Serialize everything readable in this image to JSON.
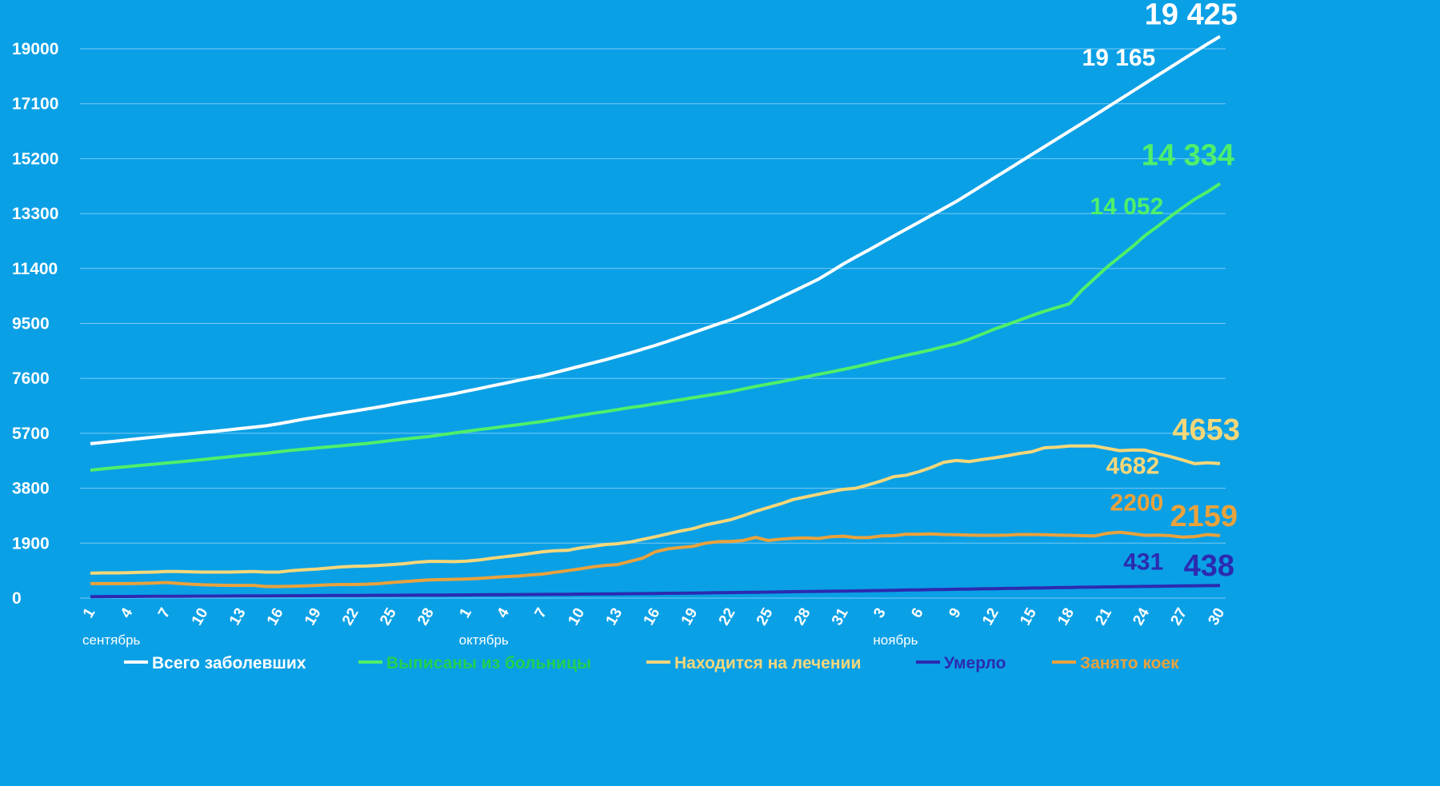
{
  "chart_data": {
    "type": "line",
    "categories": [
      "1",
      null,
      null,
      "4",
      null,
      null,
      "7",
      null,
      null,
      "10",
      null,
      null,
      "13",
      null,
      null,
      "16",
      null,
      null,
      "19",
      null,
      null,
      "22",
      null,
      null,
      "25",
      null,
      null,
      "28",
      null,
      null,
      "1",
      null,
      null,
      "4",
      null,
      null,
      "7",
      null,
      null,
      "10",
      null,
      null,
      "13",
      null,
      null,
      "16",
      null,
      null,
      "19",
      null,
      null,
      "22",
      null,
      null,
      "25",
      null,
      null,
      "28",
      null,
      null,
      "31",
      null,
      null,
      "3",
      null,
      null,
      "6",
      null,
      null,
      "9",
      null,
      null,
      "12",
      null,
      null,
      "15",
      null,
      null,
      "18",
      null,
      null,
      "21",
      null,
      null,
      "24",
      null,
      null,
      "27",
      null,
      null,
      "30"
    ],
    "month_labels": [
      "сентябрь",
      "октябрь",
      "ноябрь"
    ],
    "ylim": [
      0,
      19700
    ],
    "yticks": [
      0,
      1900,
      3800,
      5700,
      7600,
      9500,
      11400,
      13300,
      15200,
      17100,
      19000
    ],
    "grid": true,
    "series": [
      {
        "name": "Всего заболевших",
        "color": "#ffffff",
        "legend_color": "#ffffff",
        "values": [
          5340,
          5385,
          5430,
          5475,
          5520,
          5565,
          5610,
          5650,
          5690,
          5730,
          5775,
          5820,
          5865,
          5910,
          5960,
          6030,
          6110,
          6190,
          6260,
          6330,
          6400,
          6470,
          6540,
          6610,
          6690,
          6770,
          6840,
          6915,
          6990,
          7070,
          7160,
          7250,
          7340,
          7430,
          7520,
          7610,
          7690,
          7800,
          7910,
          8020,
          8130,
          8240,
          8360,
          8480,
          8610,
          8740,
          8880,
          9030,
          9180,
          9330,
          9480,
          9625,
          9800,
          9990,
          10190,
          10400,
          10610,
          10820,
          11030,
          11290,
          11560,
          11800,
          12040,
          12280,
          12520,
          12760,
          13000,
          13240,
          13480,
          13720,
          13990,
          14260,
          14530,
          14800,
          15070,
          15340,
          15610,
          15880,
          16150,
          16420,
          16695,
          16970,
          17245,
          17520,
          17795,
          18070,
          18345,
          18620,
          18895,
          19165,
          19425
        ],
        "value_labels": [
          null,
          null,
          null,
          null,
          null,
          null,
          null,
          null,
          null,
          null,
          null,
          null,
          null,
          null,
          null,
          null,
          null,
          null,
          null,
          null,
          null,
          null,
          null,
          null,
          null,
          null,
          null,
          null,
          null,
          null,
          null,
          null,
          null,
          null,
          null,
          null,
          null,
          null,
          null,
          null,
          null,
          null,
          null,
          null,
          null,
          null,
          null,
          null,
          null,
          null,
          null,
          null,
          null,
          null,
          null,
          null,
          null,
          null,
          null,
          null,
          null,
          null,
          null,
          null,
          null,
          null,
          null,
          null,
          null,
          null,
          null,
          null,
          null,
          null,
          null,
          null,
          null,
          null,
          null,
          null,
          null,
          null,
          null,
          null,
          null,
          null,
          null,
          null,
          null,
          "19 165",
          "19 425"
        ]
      },
      {
        "name": "Выписаны из больницы",
        "color": "#4ff06a",
        "legend_color": "#22d04e",
        "values": [
          4425,
          4470,
          4510,
          4550,
          4590,
          4630,
          4670,
          4710,
          4750,
          4795,
          4840,
          4885,
          4930,
          4970,
          5010,
          5060,
          5110,
          5150,
          5190,
          5230,
          5270,
          5310,
          5350,
          5400,
          5450,
          5500,
          5545,
          5590,
          5650,
          5710,
          5770,
          5830,
          5880,
          5940,
          5990,
          6050,
          6110,
          6180,
          6250,
          6320,
          6390,
          6450,
          6520,
          6590,
          6650,
          6720,
          6790,
          6860,
          6930,
          7000,
          7070,
          7140,
          7230,
          7320,
          7400,
          7480,
          7570,
          7650,
          7740,
          7820,
          7910,
          8000,
          8100,
          8200,
          8300,
          8400,
          8490,
          8590,
          8700,
          8800,
          8950,
          9120,
          9300,
          9450,
          9610,
          9770,
          9920,
          10050,
          10180,
          10650,
          11050,
          11450,
          11800,
          12150,
          12530,
          12850,
          13180,
          13500,
          13800,
          14052,
          14334
        ],
        "value_labels": [
          null,
          null,
          null,
          null,
          null,
          null,
          null,
          null,
          null,
          null,
          null,
          null,
          null,
          null,
          null,
          null,
          null,
          null,
          null,
          null,
          null,
          null,
          null,
          null,
          null,
          null,
          null,
          null,
          null,
          null,
          null,
          null,
          null,
          null,
          null,
          null,
          null,
          null,
          null,
          null,
          null,
          null,
          null,
          null,
          null,
          null,
          null,
          null,
          null,
          null,
          null,
          null,
          null,
          null,
          null,
          null,
          null,
          null,
          null,
          null,
          null,
          null,
          null,
          null,
          null,
          null,
          null,
          null,
          null,
          null,
          null,
          null,
          null,
          null,
          null,
          null,
          null,
          null,
          null,
          null,
          null,
          null,
          null,
          null,
          null,
          null,
          null,
          null,
          null,
          "14 052",
          "14 334"
        ]
      },
      {
        "name": "Находится на лечении",
        "color": "#f5d77a",
        "legend_color": "#f5d77a",
        "values": [
          860,
          870,
          870,
          880,
          890,
          900,
          920,
          920,
          910,
          900,
          900,
          900,
          910,
          920,
          900,
          900,
          950,
          980,
          1000,
          1040,
          1080,
          1100,
          1110,
          1130,
          1160,
          1190,
          1240,
          1270,
          1270,
          1260,
          1280,
          1320,
          1380,
          1430,
          1480,
          1540,
          1600,
          1640,
          1650,
          1730,
          1790,
          1850,
          1880,
          1940,
          2030,
          2120,
          2220,
          2320,
          2400,
          2530,
          2620,
          2710,
          2850,
          3000,
          3130,
          3260,
          3410,
          3500,
          3590,
          3680,
          3760,
          3800,
          3920,
          4050,
          4200,
          4250,
          4370,
          4520,
          4700,
          4760,
          4720,
          4790,
          4850,
          4920,
          5000,
          5060,
          5200,
          5220,
          5260,
          5260,
          5260,
          5180,
          5100,
          5120,
          5120,
          5000,
          4900,
          4780,
          4650,
          4682,
          4653
        ],
        "value_labels": [
          null,
          null,
          null,
          null,
          null,
          null,
          null,
          null,
          null,
          null,
          null,
          null,
          null,
          null,
          null,
          null,
          null,
          null,
          null,
          null,
          null,
          null,
          null,
          null,
          null,
          null,
          null,
          null,
          null,
          null,
          null,
          null,
          null,
          null,
          null,
          null,
          null,
          null,
          null,
          null,
          null,
          null,
          null,
          null,
          null,
          null,
          null,
          null,
          null,
          null,
          null,
          null,
          null,
          null,
          null,
          null,
          null,
          null,
          null,
          null,
          null,
          null,
          null,
          null,
          null,
          null,
          null,
          null,
          null,
          null,
          null,
          null,
          null,
          null,
          null,
          null,
          null,
          null,
          null,
          null,
          null,
          null,
          null,
          null,
          null,
          null,
          null,
          null,
          null,
          "4682",
          "4653"
        ]
      },
      {
        "name": "Умерло",
        "color": "#2b2bb0",
        "legend_color": "#2b2bb0",
        "values": [
          50,
          52,
          54,
          56,
          58,
          60,
          62,
          64,
          66,
          68,
          70,
          72,
          74,
          76,
          78,
          80,
          82,
          84,
          86,
          88,
          90,
          92,
          94,
          96,
          98,
          100,
          102,
          104,
          106,
          108,
          110,
          113,
          116,
          119,
          122,
          125,
          128,
          131,
          134,
          137,
          140,
          144,
          148,
          152,
          156,
          160,
          165,
          170,
          175,
          180,
          185,
          190,
          196,
          202,
          208,
          214,
          220,
          226,
          232,
          238,
          244,
          250,
          257,
          264,
          271,
          278,
          285,
          292,
          299,
          306,
          313,
          320,
          327,
          334,
          341,
          348,
          355,
          362,
          369,
          375,
          381,
          387,
          393,
          399,
          405,
          410,
          415,
          420,
          426,
          431,
          438
        ],
        "value_labels": [
          null,
          null,
          null,
          null,
          null,
          null,
          null,
          null,
          null,
          null,
          null,
          null,
          null,
          null,
          null,
          null,
          null,
          null,
          null,
          null,
          null,
          null,
          null,
          null,
          null,
          null,
          null,
          null,
          null,
          null,
          null,
          null,
          null,
          null,
          null,
          null,
          null,
          null,
          null,
          null,
          null,
          null,
          null,
          null,
          null,
          null,
          null,
          null,
          null,
          null,
          null,
          null,
          null,
          null,
          null,
          null,
          null,
          null,
          null,
          null,
          null,
          null,
          null,
          null,
          null,
          null,
          null,
          null,
          null,
          null,
          null,
          null,
          null,
          null,
          null,
          null,
          null,
          null,
          null,
          null,
          null,
          null,
          null,
          null,
          null,
          null,
          null,
          null,
          null,
          "431",
          "438"
        ]
      },
      {
        "name": "Занято коек",
        "color": "#e9a23c",
        "legend_color": "#e9a23c",
        "values": [
          500,
          500,
          500,
          500,
          510,
          520,
          540,
          510,
          480,
          460,
          450,
          440,
          440,
          440,
          400,
          400,
          410,
          420,
          440,
          460,
          470,
          470,
          480,
          500,
          540,
          570,
          600,
          630,
          640,
          650,
          660,
          680,
          710,
          740,
          760,
          800,
          830,
          890,
          950,
          1010,
          1080,
          1130,
          1160,
          1270,
          1380,
          1600,
          1700,
          1750,
          1790,
          1900,
          1950,
          1960,
          1990,
          2100,
          1990,
          2040,
          2070,
          2080,
          2060,
          2120,
          2140,
          2090,
          2090,
          2150,
          2160,
          2210,
          2210,
          2220,
          2200,
          2190,
          2180,
          2170,
          2170,
          2180,
          2200,
          2200,
          2190,
          2180,
          2170,
          2160,
          2150,
          2240,
          2280,
          2230,
          2170,
          2180,
          2160,
          2110,
          2130,
          2200,
          2159
        ],
        "value_labels": [
          null,
          null,
          null,
          null,
          null,
          null,
          null,
          null,
          null,
          null,
          null,
          null,
          null,
          null,
          null,
          null,
          null,
          null,
          null,
          null,
          null,
          null,
          null,
          null,
          null,
          null,
          null,
          null,
          null,
          null,
          null,
          null,
          null,
          null,
          null,
          null,
          null,
          null,
          null,
          null,
          null,
          null,
          null,
          null,
          null,
          null,
          null,
          null,
          null,
          null,
          null,
          null,
          null,
          null,
          null,
          null,
          null,
          null,
          null,
          null,
          null,
          null,
          null,
          null,
          null,
          null,
          null,
          null,
          null,
          null,
          null,
          null,
          null,
          null,
          null,
          null,
          null,
          null,
          null,
          null,
          null,
          null,
          null,
          null,
          null,
          null,
          null,
          null,
          null,
          "2200",
          "2159"
        ]
      }
    ]
  }
}
